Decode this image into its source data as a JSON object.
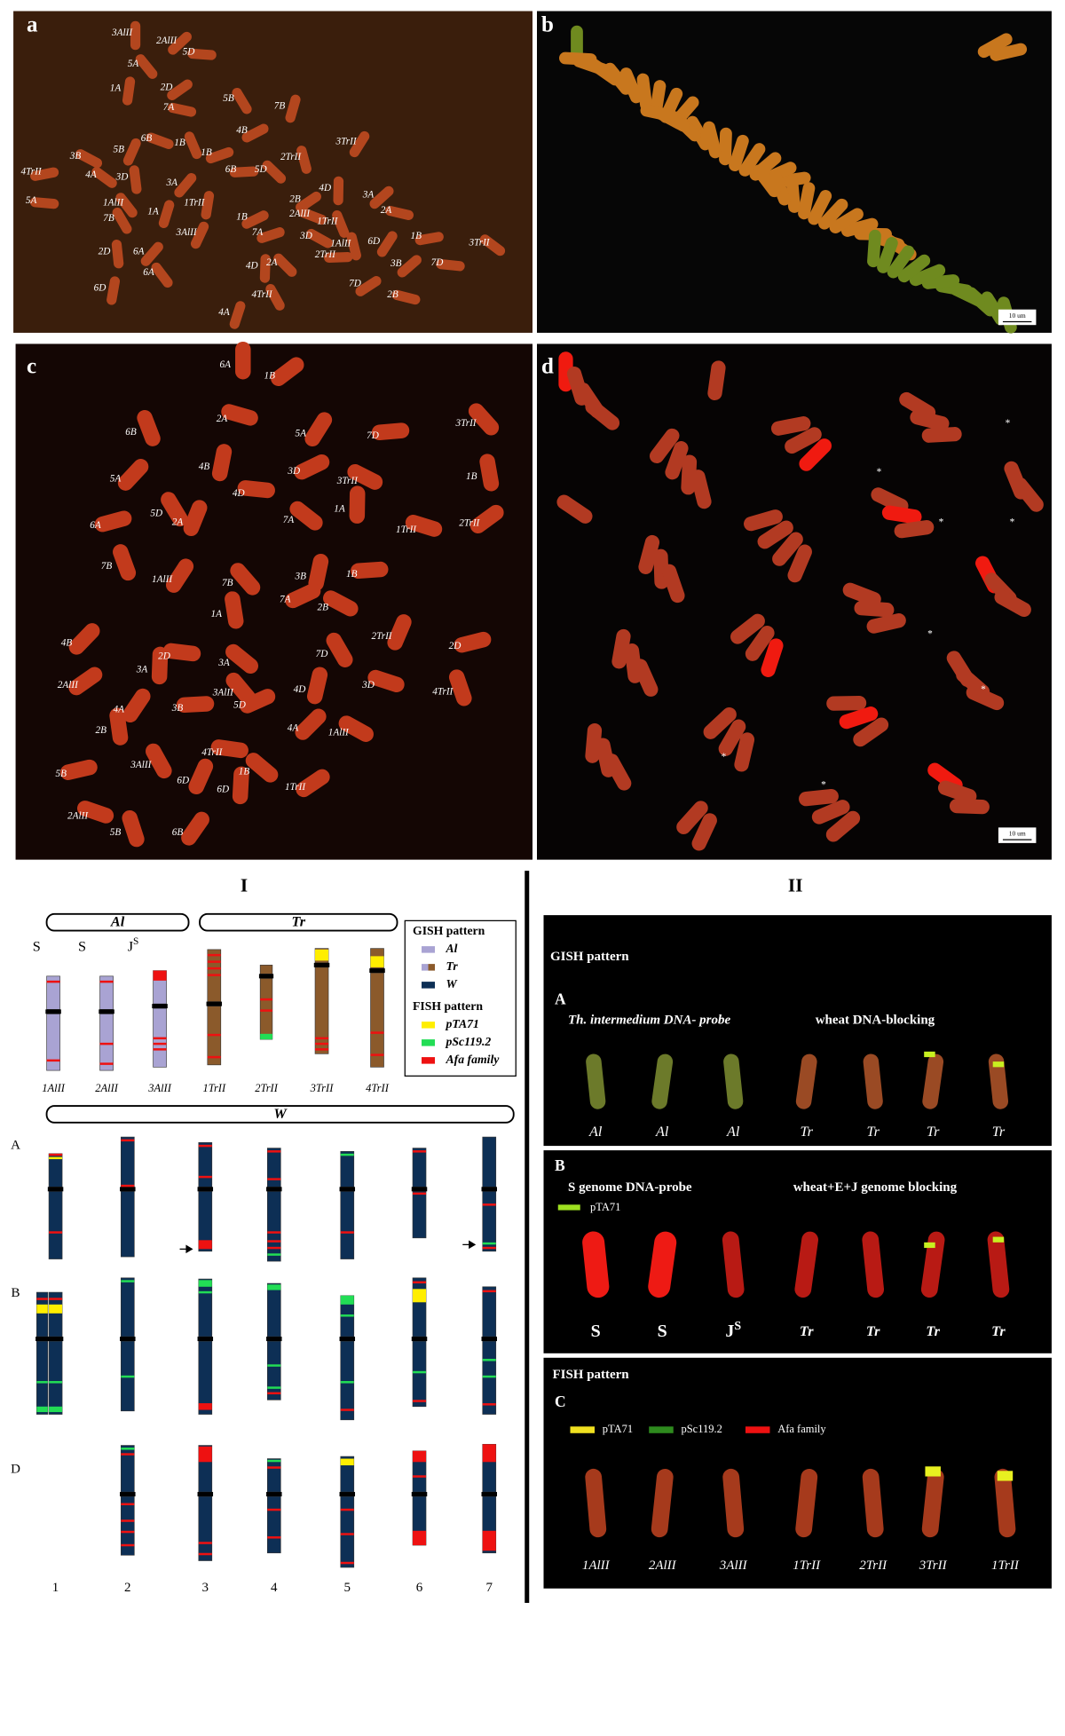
{
  "panels": {
    "a": {
      "letter": "a",
      "labels": [
        "3AlII",
        "2AlII",
        "5D",
        "5A",
        "1A",
        "2D",
        "7A",
        "5B",
        "7B",
        "4B",
        "6B",
        "1B",
        "5B",
        "1B",
        "3B",
        "2TrII",
        "3TrII",
        "4TrII",
        "4A",
        "3D",
        "3A",
        "6B",
        "5D",
        "4D",
        "3A",
        "5A",
        "1AlII",
        "1TrII",
        "2B",
        "2A",
        "7B",
        "1A",
        "1B",
        "2AlII",
        "1TrII",
        "3AlII",
        "7A",
        "3D",
        "1AlII",
        "6D",
        "1B",
        "3TrII",
        "2D",
        "6A",
        "2TrII",
        "2A",
        "4D",
        "3B",
        "7D",
        "6A",
        "6D",
        "7D",
        "2B",
        "4TrII",
        "4A"
      ]
    },
    "b": {
      "letter": "b",
      "scale_bar": "10 um"
    },
    "c": {
      "letter": "c",
      "labels": [
        "6A",
        "1B",
        "2A",
        "6B",
        "5A",
        "7D",
        "3TrII",
        "4B",
        "3D",
        "3TrII",
        "1B",
        "5A",
        "4D",
        "5D",
        "2A",
        "6A",
        "7A",
        "1A",
        "2TrII",
        "1TrII",
        "7B",
        "1AlII",
        "1B",
        "7B",
        "3B",
        "7A",
        "2B",
        "1A",
        "4B",
        "2D",
        "7D",
        "2TrII",
        "2D",
        "3A",
        "3A",
        "2AlII",
        "3D",
        "4TrII",
        "4A",
        "3B",
        "3AlII",
        "4D",
        "5D",
        "1AlII",
        "2B",
        "4A",
        "4TrII",
        "3AlII",
        "6D",
        "5B",
        "1B",
        "6D",
        "1TrII",
        "2AlII",
        "5B",
        "6B"
      ]
    },
    "d": {
      "letter": "d",
      "asterisks": [
        "*",
        "*",
        "*",
        "*",
        "*",
        "*",
        "*",
        "*"
      ],
      "scale_bar": "10 um"
    }
  },
  "section_I": {
    "title": "I",
    "groups": [
      "Al",
      "Tr",
      "W"
    ],
    "genomes": [
      {
        "base": "S"
      },
      {
        "base": "S"
      },
      {
        "base": "J",
        "sup": "S"
      }
    ],
    "chromosomes": [
      "1AlII",
      "2AlII",
      "3AlII",
      "1TrII",
      "2TrII",
      "3TrII",
      "4TrII"
    ],
    "legend": {
      "gish_title": "GISH pattern",
      "gish": [
        "Al",
        "Tr",
        "W"
      ],
      "fish_title": "FISH pattern",
      "fish": [
        "pTA71",
        "pSc119.2",
        "Afa family"
      ]
    },
    "rows": [
      "A",
      "B",
      "D"
    ],
    "columns": [
      "1",
      "2",
      "3",
      "4",
      "5",
      "6",
      "7"
    ]
  },
  "section_II": {
    "title": "II",
    "A": {
      "heading": "GISH pattern",
      "letter": "A",
      "probe": "Th. intermedium DNA- probe",
      "blocking": "wheat DNA-blocking",
      "labels": [
        "Al",
        "Al",
        "Al",
        "Tr",
        "Tr",
        "Tr",
        "Tr"
      ]
    },
    "B": {
      "letter": "B",
      "probe": "S genome DNA-probe",
      "blocking": "wheat+E+J genome blocking",
      "legend": "pTA71",
      "labels": [
        {
          "base": "S"
        },
        {
          "base": "S"
        },
        {
          "base": "J",
          "sup": "S"
        },
        {
          "base": "Tr"
        },
        {
          "base": "Tr"
        },
        {
          "base": "Tr"
        },
        {
          "base": "Tr"
        }
      ]
    },
    "C": {
      "heading": "FISH pattern",
      "letter": "C",
      "legend": [
        "pTA71",
        "pSc119.2",
        "Afa family"
      ],
      "labels": [
        "1AlII",
        "2AlII",
        "3AlII",
        "1TrII",
        "2TrII",
        "3TrII",
        "1TrII"
      ]
    }
  }
}
